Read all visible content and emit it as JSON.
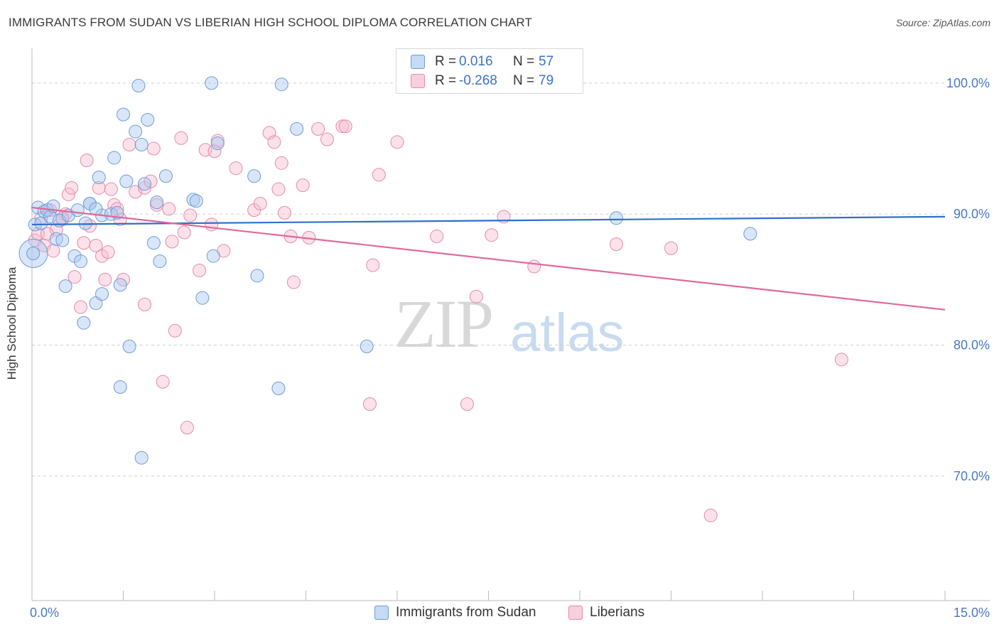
{
  "title": "IMMIGRANTS FROM SUDAN VS LIBERIAN HIGH SCHOOL DIPLOMA CORRELATION CHART",
  "source": "Source: ZipAtlas.com",
  "watermark": {
    "zip": "ZIP",
    "atlas": "atlas"
  },
  "legend": {
    "rows": [
      {
        "r_label": "R =",
        "r_value": "0.016",
        "n_label": "N =",
        "n_value": "57"
      },
      {
        "r_label": "R =",
        "r_value": "-0.268",
        "n_label": "N =",
        "n_value": "79"
      }
    ]
  },
  "bottom_legend": [
    "Immigrants from Sudan",
    "Liberians"
  ],
  "colors": {
    "sudan_fill": "#aac8f0",
    "sudan_stroke": "#6f9bd8",
    "sudan_line": "#2f6fc8",
    "liberian_fill": "#f6bcd0",
    "liberian_stroke": "#e68aab",
    "liberian_line": "#e0699a",
    "grid": "#d0d0d0",
    "tick_text": "#4a78c2"
  },
  "chart_data": {
    "type": "scatter",
    "title": "IMMIGRANTS FROM SUDAN VS LIBERIAN HIGH SCHOOL DIPLOMA CORRELATION CHART",
    "xlabel": "",
    "ylabel": "High School Diploma",
    "xlim": [
      0,
      15
    ],
    "ylim": [
      60.5,
      102
    ],
    "x_tick_labels": [
      "0.0%",
      "15.0%"
    ],
    "y_ticks": [
      70,
      80,
      90,
      100
    ],
    "y_tick_labels": [
      "70.0%",
      "80.0%",
      "90.0%",
      "100.0%"
    ],
    "grid": true,
    "legend_position": "top-center",
    "series": [
      {
        "name": "Immigrants from Sudan",
        "r": 0.016,
        "n": 57,
        "trend": {
          "x": [
            0,
            15
          ],
          "y": [
            89.2,
            89.8
          ]
        },
        "points": [
          [
            0.05,
            89.2
          ],
          [
            0.1,
            90.5
          ],
          [
            0.15,
            89.3
          ],
          [
            0.2,
            90.2
          ],
          [
            0.25,
            90.3
          ],
          [
            0.3,
            89.8
          ],
          [
            0.35,
            90.6
          ],
          [
            0.4,
            88.1
          ],
          [
            0.45,
            89.5
          ],
          [
            0.5,
            88.0
          ],
          [
            0.55,
            84.5
          ],
          [
            0.6,
            89.9
          ],
          [
            0.7,
            86.8
          ],
          [
            0.75,
            90.3
          ],
          [
            0.8,
            86.4
          ],
          [
            0.85,
            81.7
          ],
          [
            0.88,
            89.3
          ],
          [
            0.95,
            90.8
          ],
          [
            1.05,
            83.2
          ],
          [
            1.1,
            92.8
          ],
          [
            1.15,
            89.9
          ],
          [
            1.15,
            83.9
          ],
          [
            1.3,
            90.0
          ],
          [
            1.35,
            94.3
          ],
          [
            1.45,
            84.6
          ],
          [
            1.5,
            97.6
          ],
          [
            1.55,
            92.5
          ],
          [
            1.6,
            79.9
          ],
          [
            1.7,
            96.3
          ],
          [
            1.75,
            99.8
          ],
          [
            1.8,
            95.3
          ],
          [
            1.85,
            92.3
          ],
          [
            1.9,
            97.2
          ],
          [
            2.0,
            87.8
          ],
          [
            2.05,
            90.9
          ],
          [
            2.1,
            86.4
          ],
          [
            2.2,
            92.9
          ],
          [
            2.65,
            91.1
          ],
          [
            2.7,
            91.0
          ],
          [
            2.8,
            83.6
          ],
          [
            2.95,
            100.0
          ],
          [
            2.98,
            86.8
          ],
          [
            3.05,
            95.4
          ],
          [
            3.65,
            92.9
          ],
          [
            3.7,
            85.3
          ],
          [
            4.05,
            76.7
          ],
          [
            4.1,
            99.9
          ],
          [
            4.35,
            96.5
          ],
          [
            5.5,
            79.9
          ],
          [
            1.45,
            76.8
          ],
          [
            1.8,
            71.4
          ],
          [
            9.6,
            89.7
          ],
          [
            11.8,
            88.5
          ],
          [
            0.02,
            87.0
          ],
          [
            0.95,
            90.8
          ],
          [
            1.05,
            90.4
          ],
          [
            1.4,
            90.1
          ]
        ],
        "big_point": [
          0.0,
          87.0
        ]
      },
      {
        "name": "Liberians",
        "r": -0.268,
        "n": 79,
        "trend": {
          "x": [
            0,
            15
          ],
          "y": [
            90.5,
            82.7
          ]
        },
        "points": [
          [
            0.05,
            88.0
          ],
          [
            0.1,
            88.5
          ],
          [
            0.15,
            89.7
          ],
          [
            0.2,
            87.6
          ],
          [
            0.3,
            90.3
          ],
          [
            0.35,
            87.2
          ],
          [
            0.4,
            88.8
          ],
          [
            0.5,
            89.6
          ],
          [
            0.55,
            90.0
          ],
          [
            0.6,
            91.5
          ],
          [
            0.65,
            92.0
          ],
          [
            0.7,
            85.2
          ],
          [
            0.8,
            82.9
          ],
          [
            0.85,
            87.8
          ],
          [
            0.9,
            94.1
          ],
          [
            0.95,
            89.1
          ],
          [
            1.05,
            87.6
          ],
          [
            1.1,
            92.0
          ],
          [
            1.15,
            86.8
          ],
          [
            1.2,
            85.0
          ],
          [
            1.25,
            87.1
          ],
          [
            1.3,
            91.9
          ],
          [
            1.35,
            90.7
          ],
          [
            1.45,
            89.6
          ],
          [
            1.5,
            85.0
          ],
          [
            1.6,
            95.3
          ],
          [
            1.7,
            91.7
          ],
          [
            1.85,
            92.0
          ],
          [
            1.85,
            83.1
          ],
          [
            1.95,
            92.5
          ],
          [
            2.0,
            95.0
          ],
          [
            2.05,
            90.7
          ],
          [
            2.15,
            77.2
          ],
          [
            2.25,
            90.4
          ],
          [
            2.3,
            87.9
          ],
          [
            2.35,
            81.1
          ],
          [
            2.45,
            95.8
          ],
          [
            2.5,
            88.6
          ],
          [
            2.55,
            73.7
          ],
          [
            2.6,
            89.9
          ],
          [
            2.75,
            85.7
          ],
          [
            2.85,
            94.9
          ],
          [
            2.95,
            89.2
          ],
          [
            3.0,
            94.8
          ],
          [
            3.05,
            95.6
          ],
          [
            3.15,
            87.2
          ],
          [
            3.35,
            93.5
          ],
          [
            3.65,
            90.3
          ],
          [
            3.75,
            90.8
          ],
          [
            3.9,
            96.2
          ],
          [
            3.98,
            95.5
          ],
          [
            4.05,
            91.9
          ],
          [
            4.1,
            93.9
          ],
          [
            4.15,
            90.1
          ],
          [
            4.25,
            88.3
          ],
          [
            4.3,
            84.8
          ],
          [
            4.45,
            92.2
          ],
          [
            4.55,
            88.2
          ],
          [
            4.7,
            96.5
          ],
          [
            4.85,
            95.7
          ],
          [
            5.1,
            96.7
          ],
          [
            5.15,
            96.7
          ],
          [
            5.55,
            75.5
          ],
          [
            5.6,
            86.1
          ],
          [
            5.7,
            93.0
          ],
          [
            6.0,
            95.5
          ],
          [
            6.65,
            88.3
          ],
          [
            7.15,
            75.5
          ],
          [
            7.3,
            83.7
          ],
          [
            7.55,
            88.4
          ],
          [
            7.75,
            89.8
          ],
          [
            8.25,
            86.0
          ],
          [
            9.6,
            87.7
          ],
          [
            10.5,
            87.4
          ],
          [
            11.15,
            67.0
          ],
          [
            13.3,
            78.9
          ],
          [
            0.5,
            89.7
          ],
          [
            1.4,
            90.4
          ],
          [
            0.25,
            88.5
          ]
        ]
      }
    ]
  }
}
